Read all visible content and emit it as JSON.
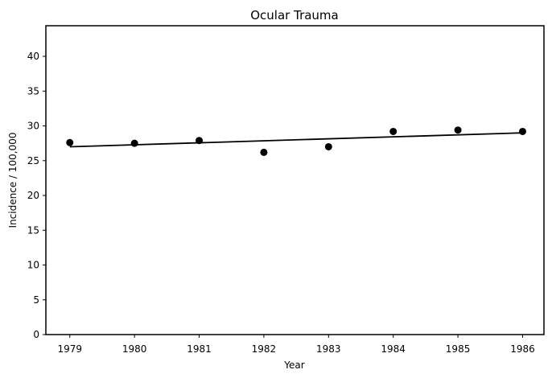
{
  "chart_data": {
    "type": "scatter",
    "title": "Ocular Trauma",
    "xlabel": "Year",
    "ylabel": "Incidence / 100,000",
    "xlim": [
      1978.63,
      1986.33
    ],
    "ylim": [
      0,
      44.4
    ],
    "xticks": [
      1979,
      1980,
      1981,
      1982,
      1983,
      1984,
      1985,
      1986
    ],
    "yticks": [
      0,
      5,
      10,
      15,
      20,
      25,
      30,
      35,
      40
    ],
    "grid": false,
    "series": [
      {
        "kind": "points",
        "x": [
          1979,
          1980,
          1981,
          1982,
          1983,
          1984,
          1985,
          1986
        ],
        "y": [
          27.6,
          27.5,
          27.9,
          26.2,
          27.0,
          29.2,
          29.4,
          29.2
        ],
        "color": "#000000"
      },
      {
        "kind": "trend-line",
        "x": [
          1979,
          1986
        ],
        "y": [
          27.0,
          29.0
        ],
        "color": "#000000"
      }
    ]
  }
}
